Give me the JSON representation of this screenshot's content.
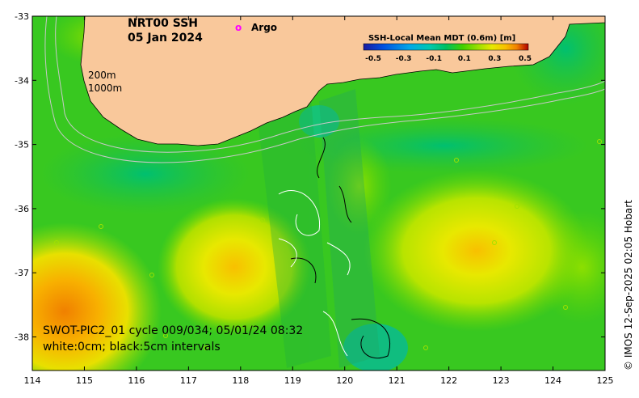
{
  "title": {
    "line1": "NRT00 SSH",
    "line2": "05 Jan 2024"
  },
  "argo_legend": {
    "symbol": "o",
    "label": "Argo",
    "color": "#ff00ff"
  },
  "colorbar": {
    "title": "SSH-Local Mean MDT (0.6m) [m]",
    "ticks": [
      "-0.5",
      "-0.3",
      "-0.1",
      "0.1",
      "0.3",
      "0.5"
    ],
    "colors": [
      "#1a1aa0",
      "#0050e0",
      "#00a8e8",
      "#00c8b0",
      "#00c060",
      "#40d000",
      "#a0e000",
      "#e8e800",
      "#f8c000",
      "#f08000",
      "#e04000",
      "#b00000"
    ]
  },
  "contour_labels": {
    "shelf": "200m",
    "slope": "1000m"
  },
  "swot_note": {
    "line1": "SWOT-PIC2_01 cycle 009/034; 05/01/24 08:32",
    "line2": "white:0cm; black:5cm intervals"
  },
  "credit": "© IMOS 12-Sep-2025 02:05 Hobart",
  "axes": {
    "x_ticks": [
      "114",
      "115",
      "116",
      "117",
      "118",
      "119",
      "120",
      "121",
      "122",
      "123",
      "124",
      "125"
    ],
    "y_ticks": [
      "-33",
      "-34",
      "-35",
      "-36",
      "-37",
      "-38"
    ]
  },
  "colors": {
    "land": "#f9c89b",
    "background_sla": "#38c820"
  }
}
